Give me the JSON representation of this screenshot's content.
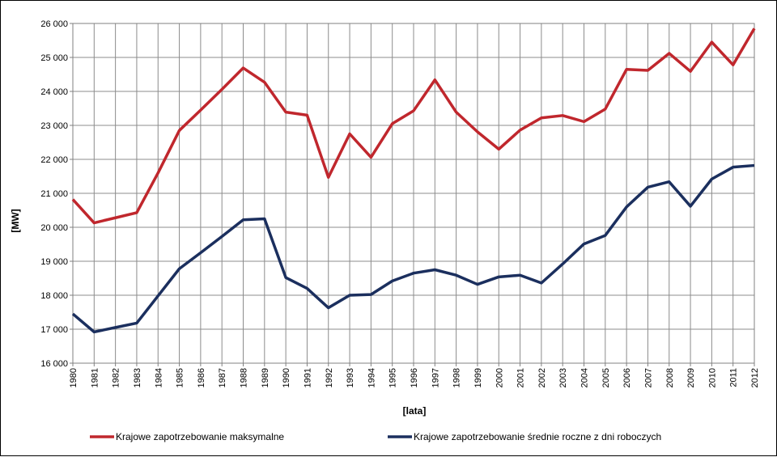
{
  "chart_data": {
    "type": "line",
    "title": "",
    "xlabel": "[lata]",
    "ylabel": "[MW]",
    "ylim": [
      16000,
      26000
    ],
    "yticks": [
      16000,
      17000,
      18000,
      19000,
      20000,
      21000,
      22000,
      23000,
      24000,
      25000,
      26000
    ],
    "ytick_labels": [
      "16 000",
      "17 000",
      "18 000",
      "19 000",
      "20 000",
      "21 000",
      "22 000",
      "23 000",
      "24 000",
      "25 000",
      "26 000"
    ],
    "grid": true,
    "legend_position": "bottom",
    "x": [
      "1980",
      "1981",
      "1982",
      "1983",
      "1984",
      "1985",
      "1986",
      "1987",
      "1988",
      "1989",
      "1990",
      "1991",
      "1992",
      "1993",
      "1994",
      "1995",
      "1996",
      "1997",
      "1998",
      "1999",
      "2000",
      "2001",
      "2002",
      "2003",
      "2004",
      "2005",
      "2006",
      "2007",
      "2008",
      "2009",
      "2010",
      "2011",
      "2012"
    ],
    "series": [
      {
        "name": "Krajowe zapotrzebowanie maksymalne",
        "color": "#c0272d",
        "values": [
          20820,
          20130,
          20280,
          20430,
          21600,
          22850,
          23450,
          24060,
          24690,
          24270,
          23390,
          23300,
          21470,
          22750,
          22060,
          23050,
          23430,
          24340,
          23390,
          22810,
          22300,
          22860,
          23220,
          23290,
          23110,
          23480,
          24650,
          24620,
          25120,
          24590,
          25450,
          24780,
          25850
        ]
      },
      {
        "name": "Krajowe zapotrzebowanie średnie roczne z dni roboczych",
        "color": "#1b2f5e",
        "values": [
          17450,
          16920,
          17050,
          17180,
          17980,
          18780,
          19250,
          19730,
          20220,
          20250,
          18520,
          18200,
          17630,
          18000,
          18020,
          18420,
          18650,
          18750,
          18590,
          18320,
          18540,
          18590,
          18360,
          18920,
          19510,
          19760,
          20600,
          21180,
          21340,
          20620,
          21420,
          21770,
          21820
        ]
      }
    ]
  }
}
